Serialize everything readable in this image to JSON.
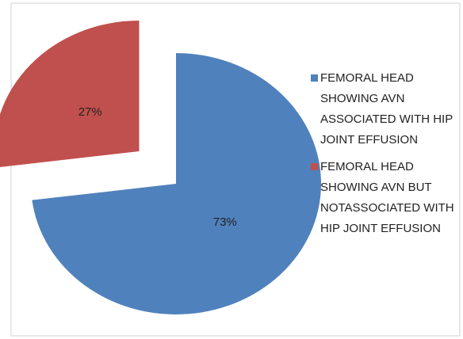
{
  "chart_data": {
    "type": "pie",
    "categories": [
      "FEMORAL HEAD SHOWING AVN ASSOCIATED WITH HIP JOINT EFFUSION",
      "FEMORAL HEAD SHOWING AVN BUT NOTASSOCIATED WITH HIP JOINT EFFUSION"
    ],
    "values": [
      73,
      27
    ],
    "value_labels": [
      "73%",
      "27%"
    ],
    "colors": [
      "#4f81bd",
      "#c0504d"
    ],
    "exploded": [
      false,
      true
    ],
    "legend": "right"
  }
}
